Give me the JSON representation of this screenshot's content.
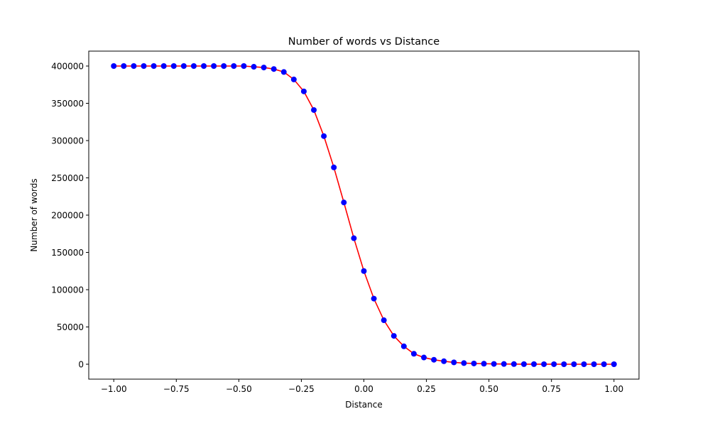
{
  "chart_data": {
    "type": "scatter",
    "title": "Number of words vs Distance",
    "xlabel": "Distance",
    "ylabel": "Number of words",
    "xlim": [
      -1.1,
      1.1
    ],
    "ylim": [
      -20000,
      420000
    ],
    "grid": false,
    "legend": "none",
    "x_ticks": [
      -1.0,
      -0.75,
      -0.5,
      -0.25,
      0.0,
      0.25,
      0.5,
      0.75,
      1.0
    ],
    "x_tick_labels": [
      "−1.00",
      "−0.75",
      "−0.50",
      "−0.25",
      "0.00",
      "0.25",
      "0.50",
      "0.75",
      "1.00"
    ],
    "y_ticks": [
      0,
      50000,
      100000,
      150000,
      200000,
      250000,
      300000,
      350000,
      400000
    ],
    "y_tick_labels": [
      "0",
      "50000",
      "100000",
      "150000",
      "200000",
      "250000",
      "300000",
      "350000",
      "400000"
    ],
    "x": [
      -1.0,
      -0.96,
      -0.92,
      -0.88,
      -0.84,
      -0.8,
      -0.76,
      -0.72,
      -0.68,
      -0.64,
      -0.6,
      -0.56,
      -0.52,
      -0.48,
      -0.44,
      -0.4,
      -0.36,
      -0.32,
      -0.28,
      -0.24,
      -0.2,
      -0.16,
      -0.12,
      -0.08,
      -0.04,
      0.0,
      0.04,
      0.08,
      0.12,
      0.16,
      0.2,
      0.24,
      0.28,
      0.32,
      0.36,
      0.4,
      0.44,
      0.48,
      0.52,
      0.56,
      0.6,
      0.64,
      0.68,
      0.72,
      0.76,
      0.8,
      0.84,
      0.88,
      0.92,
      0.96,
      1.0
    ],
    "series": [
      {
        "kind": "line",
        "color": "#ff0000",
        "values": [
          400000,
          400000,
          400000,
          400000,
          400000,
          400000,
          400000,
          400000,
          400000,
          400000,
          400000,
          400000,
          400000,
          400000,
          399000,
          398000,
          396000,
          392000,
          382000,
          366000,
          341000,
          306000,
          264000,
          217000,
          169000,
          125000,
          88000,
          59000,
          38000,
          24000,
          14000,
          9000,
          6000,
          4000,
          2500,
          1500,
          1000,
          700,
          400,
          300,
          200,
          100,
          100,
          50,
          50,
          0,
          0,
          0,
          0,
          0,
          0
        ]
      },
      {
        "kind": "markers",
        "color": "#0000ff",
        "values": [
          400000,
          400000,
          400000,
          400000,
          400000,
          400000,
          400000,
          400000,
          400000,
          400000,
          400000,
          400000,
          400000,
          400000,
          399000,
          398000,
          396000,
          392000,
          382000,
          366000,
          341000,
          306000,
          264000,
          217000,
          169000,
          125000,
          88000,
          59000,
          38000,
          24000,
          14000,
          9000,
          6000,
          4000,
          2500,
          1500,
          1000,
          700,
          400,
          300,
          200,
          100,
          100,
          50,
          50,
          0,
          0,
          0,
          0,
          0,
          0
        ]
      }
    ]
  }
}
